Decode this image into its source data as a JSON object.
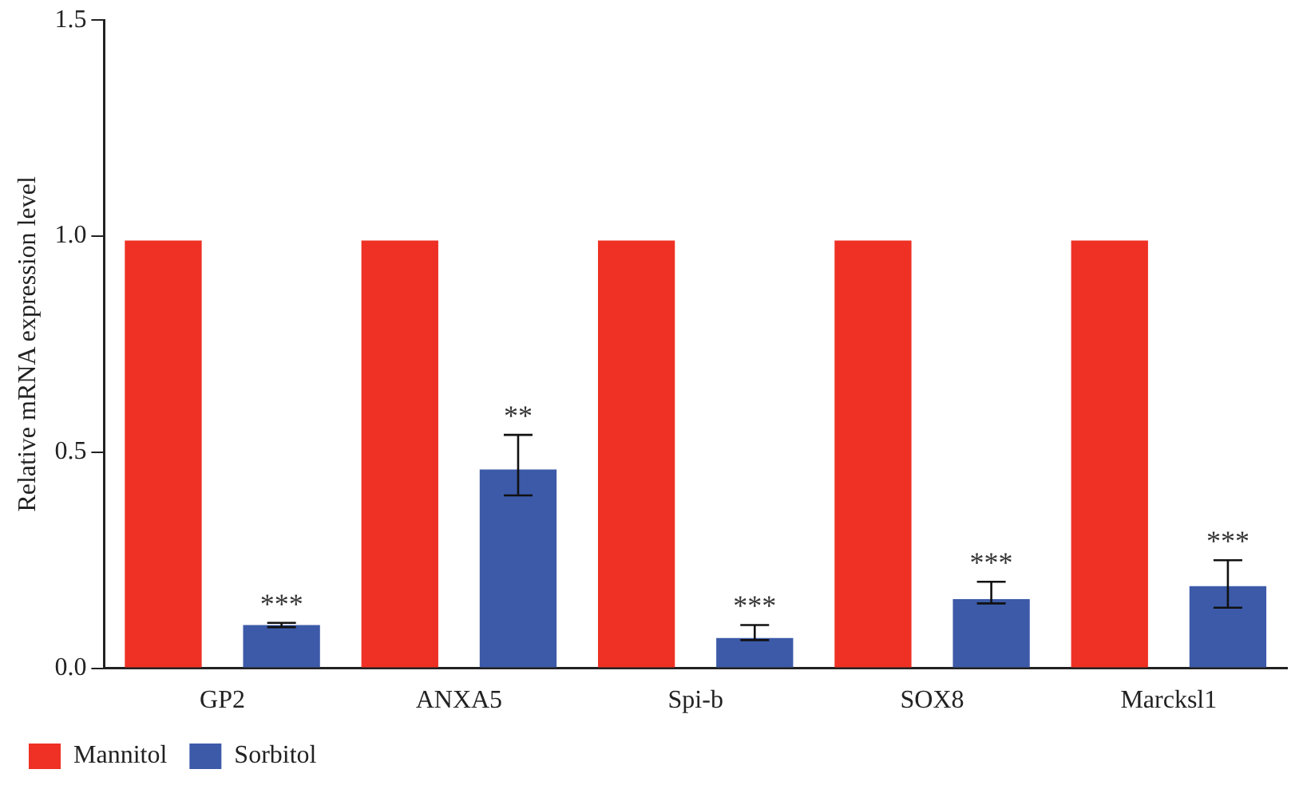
{
  "chart_data": {
    "type": "bar",
    "ylabel": "Relative mRNA expression level",
    "categories": [
      "GP2",
      "ANXA5",
      "Spi-b",
      "SOX8",
      "Marcksl1"
    ],
    "series": [
      {
        "name": "Mannitol",
        "color": "#ee3124",
        "values": [
          0.99,
          0.99,
          0.99,
          0.99,
          0.99
        ]
      },
      {
        "name": "Sorbitol",
        "color": "#3c5aa8",
        "values": [
          0.1,
          0.46,
          0.07,
          0.16,
          0.19
        ],
        "errors": [
          [
            0.095,
            0.105
          ],
          [
            0.4,
            0.54
          ],
          [
            0.065,
            0.1
          ],
          [
            0.15,
            0.2
          ],
          [
            0.14,
            0.25
          ]
        ]
      }
    ],
    "ylim": [
      0,
      1.5
    ],
    "yticks": [
      {
        "value": 0,
        "label": "0.0"
      },
      {
        "value": 0.5,
        "label": "0.5"
      },
      {
        "value": 1,
        "label": "1.0"
      },
      {
        "value": 1.5,
        "label": "1.5"
      }
    ],
    "grid": false,
    "legend": "bottom left",
    "annotations": [
      "***",
      "**",
      "***",
      "***",
      "***"
    ]
  }
}
